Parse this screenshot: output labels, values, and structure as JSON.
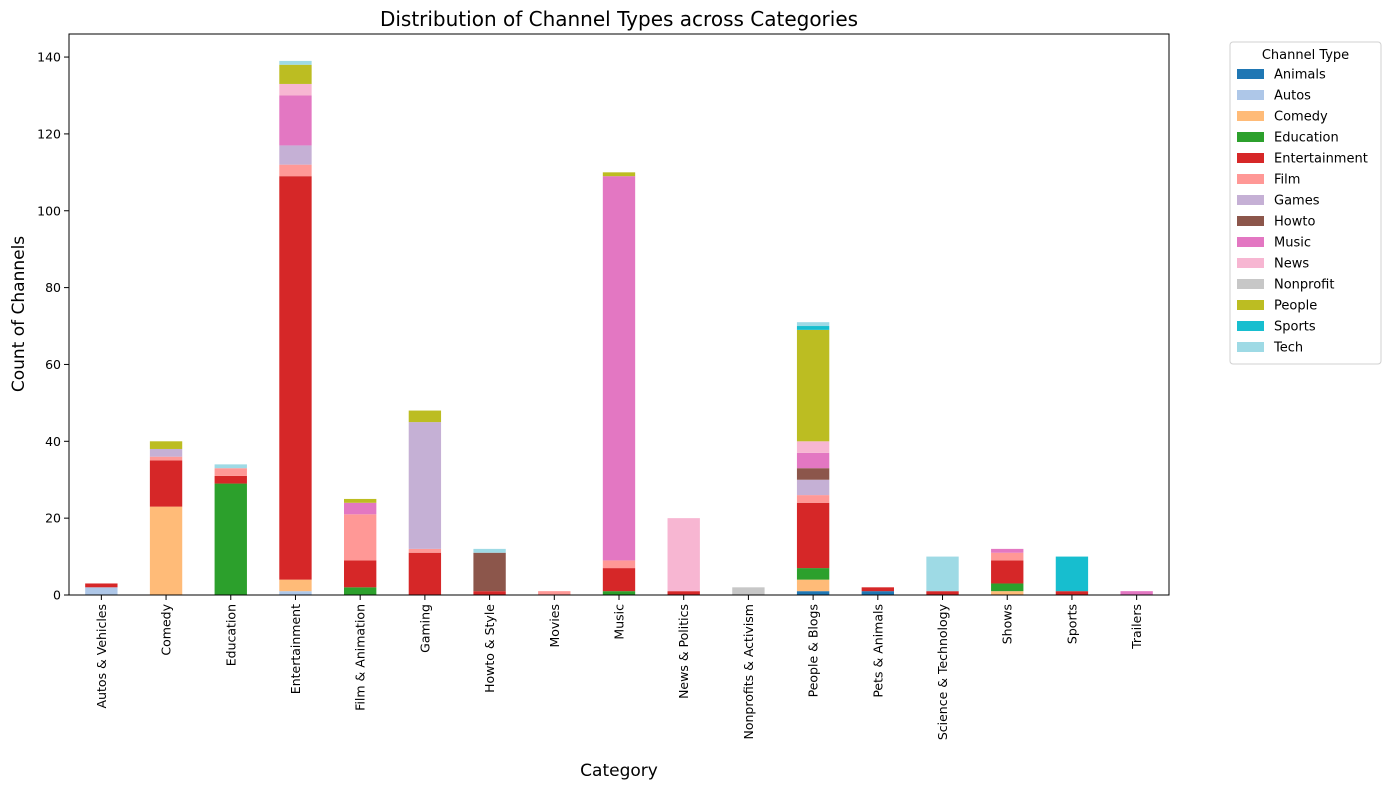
{
  "chart_data": {
    "type": "bar",
    "stacked": true,
    "title": "Distribution of Channel Types across Categories",
    "xlabel": "Category",
    "ylabel": "Count of Channels",
    "ylim": [
      0,
      146
    ],
    "yticks": [
      0,
      20,
      40,
      60,
      80,
      100,
      120,
      140
    ],
    "grid": false,
    "legend_title": "Channel Type",
    "legend_position": "outside-right-top",
    "categories": [
      "Autos & Vehicles",
      "Comedy",
      "Education",
      "Entertainment",
      "Film & Animation",
      "Gaming",
      "Howto & Style",
      "Movies",
      "Music",
      "News & Politics",
      "Nonprofits & Activism",
      "People & Blogs",
      "Pets & Animals",
      "Science & Technology",
      "Shows",
      "Sports",
      "Trailers"
    ],
    "series": [
      {
        "name": "Animals",
        "color": "#1f77b4",
        "values": [
          0,
          0,
          0,
          0,
          0,
          0,
          0,
          0,
          0,
          0,
          0,
          1,
          1,
          0,
          0,
          0,
          0
        ]
      },
      {
        "name": "Autos",
        "color": "#aec7e8",
        "values": [
          2,
          0,
          0,
          1,
          0,
          0,
          0,
          0,
          0,
          0,
          0,
          0,
          0,
          0,
          0,
          0,
          0
        ]
      },
      {
        "name": "Comedy",
        "color": "#ffbb78",
        "values": [
          0,
          23,
          0,
          3,
          0,
          0,
          0,
          0,
          0,
          0,
          0,
          3,
          0,
          0,
          1,
          0,
          0
        ]
      },
      {
        "name": "Education",
        "color": "#2ca02c",
        "values": [
          0,
          0,
          29,
          0,
          2,
          0,
          0,
          0,
          1,
          0,
          0,
          3,
          0,
          0,
          2,
          0,
          0
        ]
      },
      {
        "name": "Entertainment",
        "color": "#d62728",
        "values": [
          1,
          12,
          2,
          105,
          7,
          11,
          1,
          0,
          6,
          1,
          0,
          17,
          1,
          1,
          6,
          1,
          0
        ]
      },
      {
        "name": "Film",
        "color": "#ff9896",
        "values": [
          0,
          1,
          2,
          3,
          12,
          1,
          0,
          1,
          2,
          0,
          0,
          2,
          0,
          0,
          2,
          0,
          0
        ]
      },
      {
        "name": "Games",
        "color": "#c5b0d5",
        "values": [
          0,
          2,
          0,
          5,
          0,
          33,
          0,
          0,
          0,
          0,
          0,
          4,
          0,
          0,
          0,
          0,
          0
        ]
      },
      {
        "name": "Howto",
        "color": "#8c564b",
        "values": [
          0,
          0,
          0,
          0,
          0,
          0,
          10,
          0,
          0,
          0,
          0,
          3,
          0,
          0,
          0,
          0,
          0
        ]
      },
      {
        "name": "Music",
        "color": "#e377c2",
        "values": [
          0,
          0,
          0,
          13,
          3,
          0,
          0,
          0,
          100,
          0,
          0,
          4,
          0,
          0,
          1,
          0,
          1
        ]
      },
      {
        "name": "News",
        "color": "#f7b6d2",
        "values": [
          0,
          0,
          0,
          3,
          0,
          0,
          0,
          0,
          0,
          19,
          0,
          3,
          0,
          0,
          0,
          0,
          0
        ]
      },
      {
        "name": "Nonprofit",
        "color": "#c7c7c7",
        "values": [
          0,
          0,
          0,
          0,
          0,
          0,
          0,
          0,
          0,
          0,
          2,
          0,
          0,
          0,
          0,
          0,
          0
        ]
      },
      {
        "name": "People",
        "color": "#bcbd22",
        "values": [
          0,
          2,
          0,
          5,
          1,
          3,
          0,
          0,
          1,
          0,
          0,
          29,
          0,
          0,
          0,
          0,
          0
        ]
      },
      {
        "name": "Sports",
        "color": "#17becf",
        "values": [
          0,
          0,
          0,
          0,
          0,
          0,
          0,
          0,
          0,
          0,
          0,
          1,
          0,
          0,
          0,
          9,
          0
        ]
      },
      {
        "name": "Tech",
        "color": "#9edae5",
        "values": [
          0,
          0,
          1,
          1,
          0,
          0,
          1,
          0,
          0,
          0,
          0,
          1,
          0,
          9,
          0,
          0,
          0
        ]
      }
    ]
  }
}
